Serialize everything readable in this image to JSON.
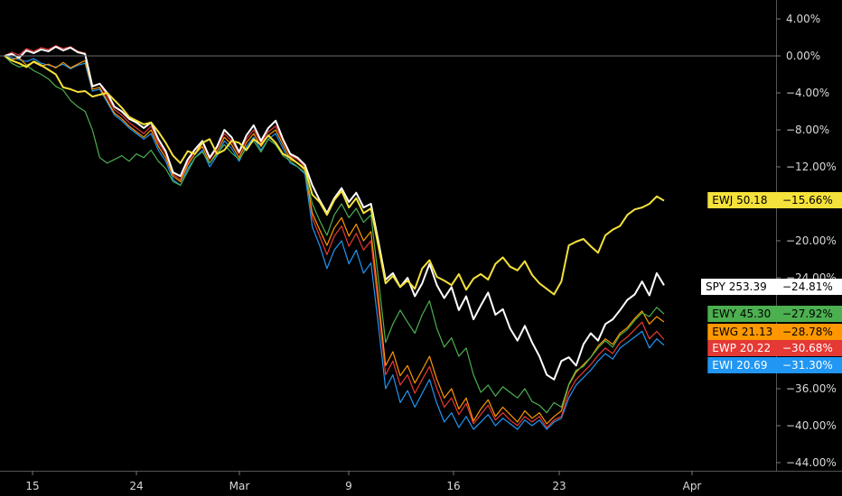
{
  "chart_data": {
    "type": "line",
    "x_ticks": [
      "15",
      "24",
      "Mar",
      "9",
      "16",
      "23",
      "Apr"
    ],
    "y_ticks": [
      "4.00%",
      "0.00%",
      "−4.00%",
      "−8.00%",
      "−12.00%",
      "−16.00%",
      "−20.00%",
      "−24.00%",
      "−28.00%",
      "−32.00%",
      "−36.00%",
      "−40.00%",
      "−44.00%"
    ],
    "y_tick_values": [
      4,
      0,
      -4,
      -8,
      -12,
      -16,
      -20,
      -24,
      -28,
      -32,
      -36,
      -40,
      -44
    ],
    "ylim": [
      -44,
      4
    ],
    "grid": false,
    "baseline": 0,
    "series": [
      {
        "name": "EWJ",
        "price": "50.18",
        "change": "−15.66%",
        "color": "#f5e13b",
        "text_color": "#000000",
        "values": [
          0,
          -0.5,
          -0.8,
          -1.2,
          -0.6,
          -1.0,
          -1.5,
          -2.0,
          -3.4,
          -3.6,
          -3.9,
          -3.8,
          -4.4,
          -4.2,
          -4.0,
          -4.8,
          -5.6,
          -6.6,
          -7.0,
          -7.4,
          -7.2,
          -8.2,
          -9.4,
          -10.8,
          -11.6,
          -10.3,
          -10.6,
          -9.4,
          -9.0,
          -10.6,
          -10.2,
          -9.2,
          -9.4,
          -10.2,
          -9.0,
          -9.6,
          -8.6,
          -9.4,
          -10.6,
          -11.0,
          -11.6,
          -12.2,
          -15.0,
          -15.8,
          -17.2,
          -15.6,
          -14.6,
          -16.4,
          -15.4,
          -17.0,
          -16.5,
          -20.5,
          -24.6,
          -23.8,
          -25.0,
          -24.3,
          -25.2,
          -23.0,
          -22.1,
          -23.9,
          -24.3,
          -24.8,
          -23.6,
          -25.3,
          -24.1,
          -23.6,
          -24.2,
          -22.5,
          -21.8,
          -22.8,
          -23.2,
          -22.2,
          -23.7,
          -24.6,
          -25.2,
          -25.8,
          -24.4,
          -20.5,
          -20.1,
          -19.8,
          -20.6,
          -21.3,
          -19.4,
          -18.8,
          -18.4,
          -17.2,
          -16.6,
          -16.4,
          -16.0,
          -15.2,
          -15.66
        ]
      },
      {
        "name": "SPY",
        "price": "253.39",
        "change": "−24.81%",
        "color": "#ffffff",
        "text_color": "#000000",
        "values": [
          0,
          0.2,
          -0.2,
          0.6,
          0.3,
          0.7,
          0.5,
          1.0,
          0.6,
          0.9,
          0.4,
          0.2,
          -3.3,
          -3.0,
          -4.0,
          -5.5,
          -6.0,
          -6.8,
          -7.2,
          -7.8,
          -7.2,
          -9.0,
          -10.3,
          -12.6,
          -13.0,
          -11.2,
          -10.1,
          -9.2,
          -11.0,
          -9.8,
          -8.0,
          -8.8,
          -10.4,
          -8.6,
          -7.5,
          -9.2,
          -7.8,
          -7.0,
          -9.0,
          -10.6,
          -11.0,
          -11.8,
          -14.0,
          -15.6,
          -17.0,
          -15.4,
          -14.3,
          -15.8,
          -14.8,
          -16.4,
          -16.0,
          -20.0,
          -24.2,
          -23.5,
          -25.0,
          -24.0,
          -26.0,
          -24.6,
          -22.5,
          -24.8,
          -26.2,
          -25.0,
          -27.5,
          -26.0,
          -28.5,
          -27.0,
          -25.6,
          -28.0,
          -27.4,
          -29.5,
          -30.8,
          -29.2,
          -31.0,
          -32.5,
          -34.5,
          -35.0,
          -33.0,
          -32.6,
          -33.5,
          -31.2,
          -30.0,
          -30.8,
          -29.0,
          -28.5,
          -27.5,
          -26.4,
          -25.8,
          -24.4,
          -25.9,
          -23.5,
          -24.81
        ]
      },
      {
        "name": "EWY",
        "price": "45.30",
        "change": "−27.92%",
        "color": "#4caf50",
        "text_color": "#000000",
        "values": [
          0,
          -0.8,
          -1.2,
          -1.0,
          -1.6,
          -2.0,
          -2.5,
          -3.3,
          -3.7,
          -4.8,
          -5.5,
          -6.0,
          -8.0,
          -11.0,
          -11.6,
          -11.2,
          -10.8,
          -11.4,
          -10.6,
          -11.0,
          -10.2,
          -11.4,
          -12.2,
          -13.6,
          -14.0,
          -12.5,
          -11.0,
          -10.4,
          -11.6,
          -10.6,
          -9.6,
          -10.5,
          -11.2,
          -10.0,
          -9.2,
          -10.4,
          -9.0,
          -9.6,
          -10.8,
          -11.4,
          -12.0,
          -12.6,
          -16.0,
          -17.8,
          -19.4,
          -17.2,
          -16.0,
          -17.5,
          -16.5,
          -18.0,
          -17.2,
          -24.0,
          -31.0,
          -29.0,
          -27.5,
          -28.8,
          -30.0,
          -28.0,
          -26.5,
          -29.5,
          -31.5,
          -30.5,
          -32.5,
          -31.6,
          -34.5,
          -36.4,
          -35.6,
          -36.8,
          -35.8,
          -36.4,
          -37.0,
          -36.0,
          -37.4,
          -37.8,
          -38.6,
          -37.5,
          -38.0,
          -35.5,
          -34.0,
          -33.6,
          -32.6,
          -31.6,
          -30.8,
          -31.5,
          -30.2,
          -29.6,
          -28.6,
          -27.8,
          -28.2,
          -27.2,
          -27.92
        ]
      },
      {
        "name": "EWG",
        "price": "21.13",
        "change": "−28.78%",
        "color": "#ff9800",
        "text_color": "#000000",
        "values": [
          0,
          -0.4,
          -0.2,
          -1.0,
          -0.7,
          -1.1,
          -0.9,
          -1.3,
          -0.7,
          -1.3,
          -0.9,
          -0.5,
          -3.6,
          -3.4,
          -4.8,
          -6.2,
          -6.8,
          -7.6,
          -8.2,
          -8.8,
          -8.0,
          -9.8,
          -11.0,
          -13.0,
          -13.6,
          -11.8,
          -10.6,
          -9.8,
          -11.6,
          -10.4,
          -8.8,
          -9.6,
          -11.0,
          -9.4,
          -8.4,
          -9.8,
          -8.6,
          -8.0,
          -9.6,
          -11.2,
          -11.6,
          -12.4,
          -17.0,
          -18.8,
          -20.5,
          -18.6,
          -17.5,
          -19.5,
          -18.2,
          -20.0,
          -19.0,
          -26.0,
          -33.5,
          -32.0,
          -34.6,
          -33.5,
          -35.4,
          -34.0,
          -32.5,
          -35.0,
          -37.0,
          -36.0,
          -38.2,
          -37.0,
          -39.5,
          -38.2,
          -37.2,
          -39.0,
          -38.0,
          -38.8,
          -39.6,
          -38.4,
          -39.2,
          -38.6,
          -39.8,
          -39.0,
          -38.4,
          -35.6,
          -34.2,
          -33.4,
          -32.6,
          -31.4,
          -30.6,
          -31.2,
          -30.0,
          -29.4,
          -28.4,
          -27.6,
          -29.0,
          -28.2,
          -28.78
        ]
      },
      {
        "name": "EWP",
        "price": "20.22",
        "change": "−30.68%",
        "color": "#e53935",
        "text_color": "#ffffff",
        "values": [
          0,
          0.4,
          0.1,
          0.8,
          0.5,
          0.9,
          0.7,
          1.1,
          0.8,
          1.0,
          0.5,
          0.3,
          -3.2,
          -3.0,
          -4.4,
          -5.8,
          -6.4,
          -7.2,
          -7.8,
          -8.4,
          -7.6,
          -9.4,
          -10.6,
          -12.8,
          -13.4,
          -11.6,
          -10.2,
          -9.4,
          -11.2,
          -10.0,
          -8.4,
          -9.2,
          -10.6,
          -9.0,
          -8.0,
          -9.4,
          -8.2,
          -7.6,
          -9.2,
          -10.8,
          -11.2,
          -12.0,
          -17.5,
          -19.5,
          -21.5,
          -19.5,
          -18.4,
          -20.6,
          -19.2,
          -21.0,
          -20.0,
          -27.0,
          -34.5,
          -33.0,
          -35.6,
          -34.5,
          -36.5,
          -35.0,
          -33.6,
          -36.0,
          -38.0,
          -37.0,
          -38.8,
          -37.6,
          -39.8,
          -38.8,
          -37.8,
          -39.4,
          -38.6,
          -39.4,
          -40.0,
          -39.0,
          -39.6,
          -39.0,
          -40.2,
          -39.4,
          -39.0,
          -36.4,
          -35.0,
          -34.2,
          -33.4,
          -32.4,
          -31.6,
          -32.2,
          -31.0,
          -30.4,
          -29.6,
          -28.8,
          -30.6,
          -29.8,
          -30.68
        ]
      },
      {
        "name": "EWI",
        "price": "20.69",
        "change": "−31.30%",
        "color": "#2196f3",
        "text_color": "#ffffff",
        "values": [
          0,
          -0.2,
          -0.4,
          -0.6,
          -0.3,
          -0.8,
          -1.0,
          -1.2,
          -0.9,
          -1.4,
          -1.0,
          -0.8,
          -3.8,
          -3.6,
          -5.0,
          -6.4,
          -7.0,
          -7.8,
          -8.4,
          -9.0,
          -8.4,
          -10.2,
          -11.4,
          -13.4,
          -14.0,
          -12.2,
          -11.0,
          -10.2,
          -12.0,
          -10.8,
          -9.2,
          -10.0,
          -11.4,
          -9.8,
          -8.8,
          -10.2,
          -9.0,
          -8.4,
          -10.0,
          -11.6,
          -12.0,
          -12.8,
          -18.5,
          -20.5,
          -23.0,
          -21.0,
          -20.0,
          -22.5,
          -21.0,
          -23.5,
          -22.4,
          -29.0,
          -36.0,
          -34.5,
          -37.5,
          -36.2,
          -38.0,
          -36.5,
          -35.0,
          -37.6,
          -39.6,
          -38.6,
          -40.2,
          -39.0,
          -40.4,
          -39.6,
          -38.8,
          -40.0,
          -39.2,
          -39.8,
          -40.4,
          -39.4,
          -40.0,
          -39.4,
          -40.4,
          -39.6,
          -39.2,
          -37.0,
          -35.6,
          -34.8,
          -34.0,
          -33.0,
          -32.2,
          -32.8,
          -31.6,
          -31.0,
          -30.4,
          -29.8,
          -31.6,
          -30.6,
          -31.3
        ]
      }
    ]
  }
}
